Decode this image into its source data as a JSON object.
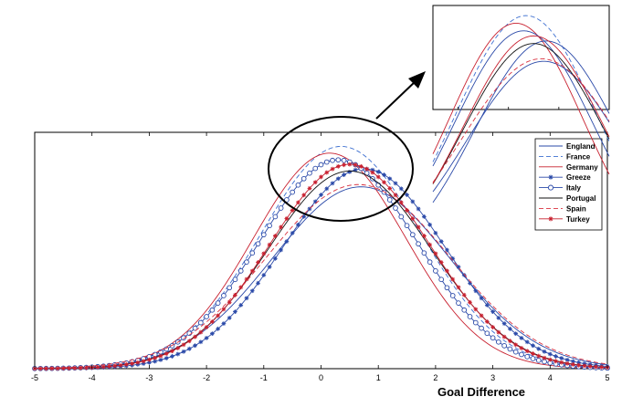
{
  "chart_data": {
    "type": "line",
    "xlabel": "Goal Difference",
    "ylabel": "",
    "title": "",
    "xlim": [
      -5,
      5
    ],
    "ylim": [
      0,
      1
    ],
    "x_ticks": [
      "-5",
      "-4",
      "-3",
      "-2",
      "-1",
      "0",
      "1",
      "2",
      "3",
      "4",
      "5"
    ],
    "grid": false,
    "legend_position": "top-right",
    "zoom_inset": {
      "x_range": [
        -1.5,
        2.0
      ]
    },
    "series": [
      {
        "name": "England",
        "mu": 0.7,
        "sigma": 1.55,
        "peak": 0.81,
        "color": "#2a49a8",
        "dash": "",
        "marker": "none"
      },
      {
        "name": "France",
        "mu": 0.35,
        "sigma": 1.4,
        "peak": 0.99,
        "color": "#3d6fd0",
        "dash": "5,3",
        "marker": "none"
      },
      {
        "name": "Germany",
        "mu": 0.15,
        "sigma": 1.33,
        "peak": 0.96,
        "color": "#c8202f",
        "dash": "",
        "marker": "none"
      },
      {
        "name": "Greeze",
        "mu": 0.75,
        "sigma": 1.42,
        "peak": 0.89,
        "color": "#2a49a8",
        "dash": "",
        "marker": "star"
      },
      {
        "name": "Italy",
        "mu": 0.3,
        "sigma": 1.38,
        "peak": 0.93,
        "color": "#2a49a8",
        "dash": "",
        "marker": "circle"
      },
      {
        "name": "Portugal",
        "mu": 0.5,
        "sigma": 1.42,
        "peak": 0.88,
        "color": "#111111",
        "dash": "",
        "marker": "none"
      },
      {
        "name": "Spain",
        "mu": 0.65,
        "sigma": 1.6,
        "peak": 0.82,
        "color": "#d9303e",
        "dash": "5,3",
        "marker": "none"
      },
      {
        "name": "Turkey",
        "mu": 0.5,
        "sigma": 1.4,
        "peak": 0.91,
        "color": "#c8202f",
        "dash": "",
        "marker": "star"
      }
    ]
  }
}
